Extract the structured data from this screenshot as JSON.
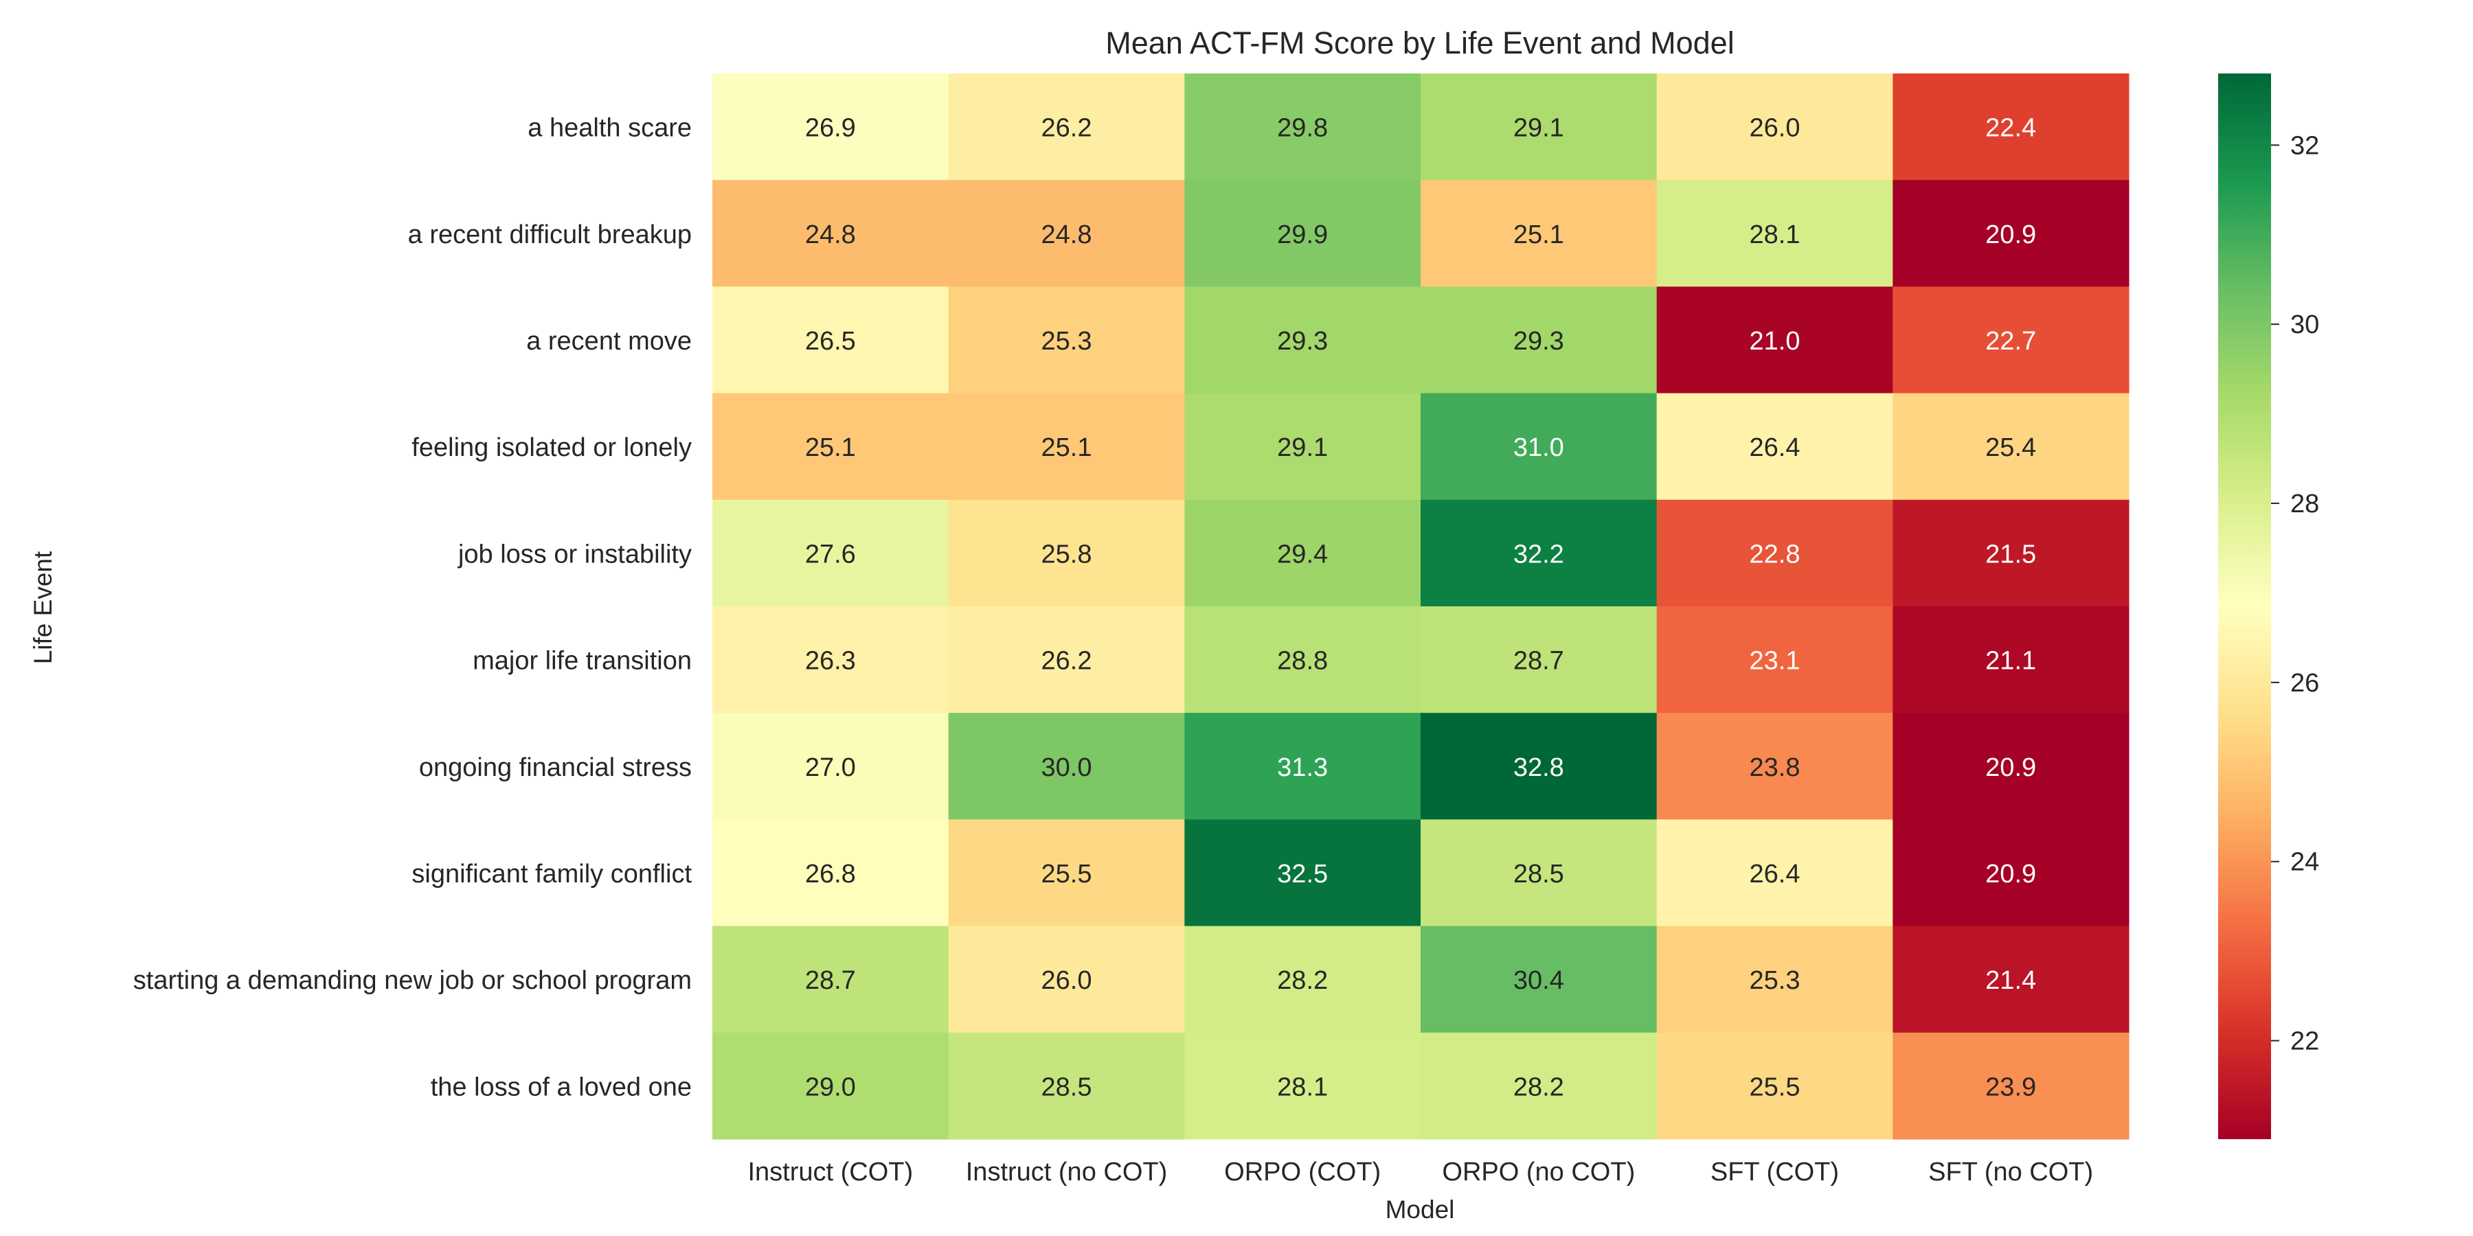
{
  "chart_data": {
    "type": "heatmap",
    "title": "Mean ACT-FM Score by Life Event and Model",
    "xlabel": "Model",
    "ylabel": "Life Event",
    "x_categories": [
      "Instruct (COT)",
      "Instruct (no COT)",
      "ORPO (COT)",
      "ORPO (no COT)",
      "SFT (COT)",
      "SFT (no COT)"
    ],
    "y_categories": [
      "a health scare",
      "a recent difficult breakup",
      "a recent move",
      "feeling isolated or lonely",
      "job loss or instability",
      "major life transition",
      "ongoing financial stress",
      "significant family conflict",
      "starting a demanding new job or school program",
      "the loss of a loved one"
    ],
    "values": [
      [
        26.9,
        26.2,
        29.8,
        29.1,
        26.0,
        22.4
      ],
      [
        24.8,
        24.8,
        29.9,
        25.1,
        28.1,
        20.9
      ],
      [
        26.5,
        25.3,
        29.3,
        29.3,
        21.0,
        22.7
      ],
      [
        25.1,
        25.1,
        29.1,
        31.0,
        26.4,
        25.4
      ],
      [
        27.6,
        25.8,
        29.4,
        32.2,
        22.8,
        21.5
      ],
      [
        26.3,
        26.2,
        28.8,
        28.7,
        23.1,
        21.1
      ],
      [
        27.0,
        30.0,
        31.3,
        32.8,
        23.8,
        20.9
      ],
      [
        26.8,
        25.5,
        32.5,
        28.5,
        26.4,
        20.9
      ],
      [
        28.7,
        26.0,
        28.2,
        30.4,
        25.3,
        21.4
      ],
      [
        29.0,
        28.5,
        28.1,
        28.2,
        25.5,
        23.9
      ]
    ],
    "colormap": "RdYlGn",
    "colorbar": {
      "vmin": 20.9,
      "vmax": 32.8,
      "ticks": [
        22,
        24,
        26,
        28,
        30,
        32
      ]
    }
  }
}
